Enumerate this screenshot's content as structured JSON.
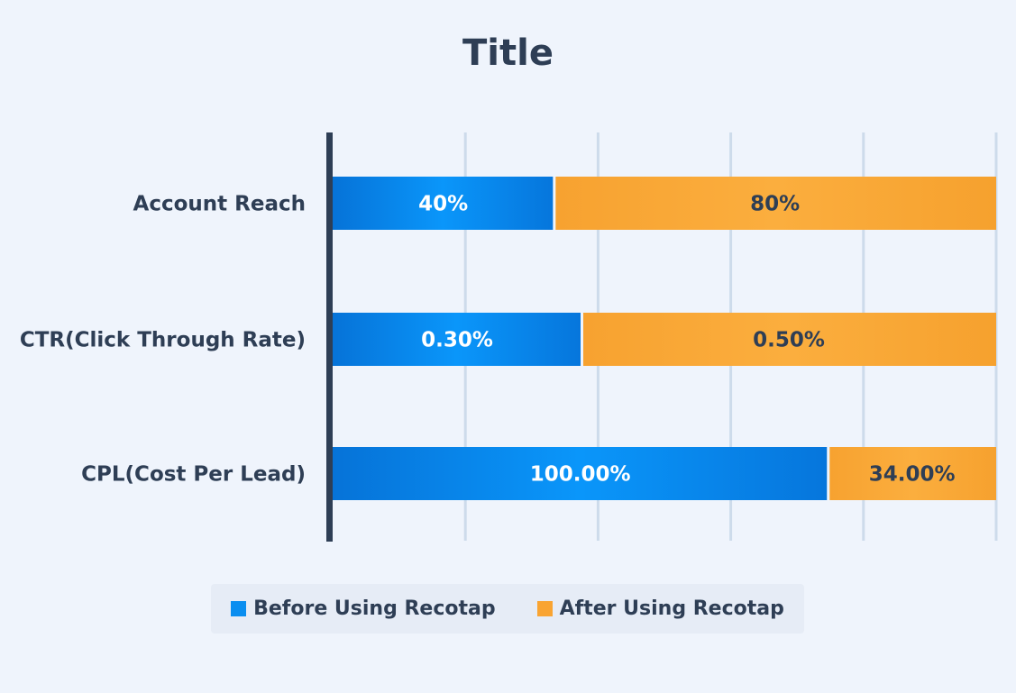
{
  "chart_data": {
    "type": "bar",
    "orientation": "horizontal",
    "stacked": true,
    "normalized": true,
    "title": "Title",
    "categories": [
      "Account Reach",
      "CTR(Click Through Rate)",
      "CPL(Cost Per Lead)"
    ],
    "series": [
      {
        "name": "Before Using Recotap",
        "values": [
          40,
          0.3,
          100.0
        ],
        "labels": [
          "40%",
          "0.30%",
          "100.00%"
        ],
        "color": "#0a8ef0"
      },
      {
        "name": "After Using Recotap",
        "values": [
          80,
          0.5,
          34.0
        ],
        "labels": [
          "80%",
          "0.50%",
          "34.00%"
        ],
        "color": "#f9a432"
      }
    ],
    "xlim": [
      0,
      100
    ],
    "grid": true,
    "legend": "bottom"
  }
}
